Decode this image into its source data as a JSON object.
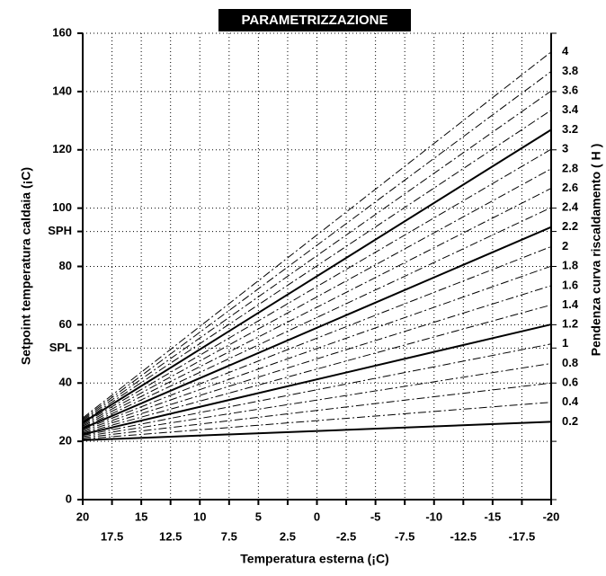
{
  "chart_data": {
    "type": "line",
    "title": "PARAMETRIZZAZIONE",
    "x_label": "Temperatura esterna (¡C)",
    "y_label": "Setpoint temperatura caldaia (¡C)",
    "y2_label": "Pendenza curva riscaldamento ( H )",
    "x": [
      20,
      -20
    ],
    "xlim": [
      20,
      -20
    ],
    "xticks": [
      20,
      17.5,
      15,
      12.5,
      10,
      7.5,
      5,
      2.5,
      0,
      -2.5,
      -5,
      -7.5,
      -10,
      -12.5,
      -15,
      -17.5,
      -20
    ],
    "ylim": [
      0,
      160
    ],
    "yticks": [
      0,
      20,
      40,
      {
        "value": 52,
        "label": "SPL"
      },
      60,
      80,
      {
        "value": 92,
        "label": "SPH"
      },
      100,
      120,
      140,
      160
    ],
    "grid": true,
    "series": [
      {
        "name": "0.2",
        "color": "#000000",
        "style": "solid",
        "values": [
          20.4,
          26.7
        ]
      },
      {
        "name": "0.4",
        "color": "#000000",
        "style": "dashdot",
        "values": [
          20.8,
          33.4
        ]
      },
      {
        "name": "0.6",
        "color": "#000000",
        "style": "dashdot",
        "values": [
          21.2,
          40.0
        ]
      },
      {
        "name": "0.8",
        "color": "#000000",
        "style": "dashdot",
        "values": [
          21.6,
          46.7
        ]
      },
      {
        "name": "1",
        "color": "#000000",
        "style": "dashdot",
        "values": [
          22,
          53.4
        ]
      },
      {
        "name": "1.2",
        "color": "#000000",
        "style": "solid",
        "values": [
          22.4,
          60.1
        ]
      },
      {
        "name": "1.4",
        "color": "#000000",
        "style": "dashdot",
        "values": [
          22.8,
          66.8
        ]
      },
      {
        "name": "1.6",
        "color": "#000000",
        "style": "dashdot",
        "values": [
          23.2,
          73.4
        ]
      },
      {
        "name": "1.8",
        "color": "#000000",
        "style": "dashdot",
        "values": [
          23.6,
          80.1
        ]
      },
      {
        "name": "2",
        "color": "#000000",
        "style": "dashdot",
        "values": [
          24,
          86.8
        ]
      },
      {
        "name": "2.2",
        "color": "#000000",
        "style": "solid",
        "values": [
          24.4,
          93.5
        ]
      },
      {
        "name": "2.4",
        "color": "#000000",
        "style": "dashdot",
        "values": [
          24.8,
          100.2
        ]
      },
      {
        "name": "2.6",
        "color": "#000000",
        "style": "dashdot",
        "values": [
          25.2,
          106.8
        ]
      },
      {
        "name": "2.8",
        "color": "#000000",
        "style": "dashdot",
        "values": [
          25.6,
          113.5
        ]
      },
      {
        "name": "3",
        "color": "#000000",
        "style": "dashdot",
        "values": [
          26,
          120.2
        ]
      },
      {
        "name": "3.2",
        "color": "#000000",
        "style": "solid",
        "values": [
          26.4,
          126.9
        ]
      },
      {
        "name": "3.4",
        "color": "#000000",
        "style": "dashdot",
        "values": [
          26.8,
          133.6
        ]
      },
      {
        "name": "3.6",
        "color": "#000000",
        "style": "dashdot",
        "values": [
          27.2,
          140.2
        ]
      },
      {
        "name": "3.8",
        "color": "#000000",
        "style": "dashdot",
        "values": [
          27.6,
          146.9
        ]
      },
      {
        "name": "4",
        "color": "#000000",
        "style": "dashdot",
        "values": [
          28,
          153.6
        ]
      }
    ]
  }
}
